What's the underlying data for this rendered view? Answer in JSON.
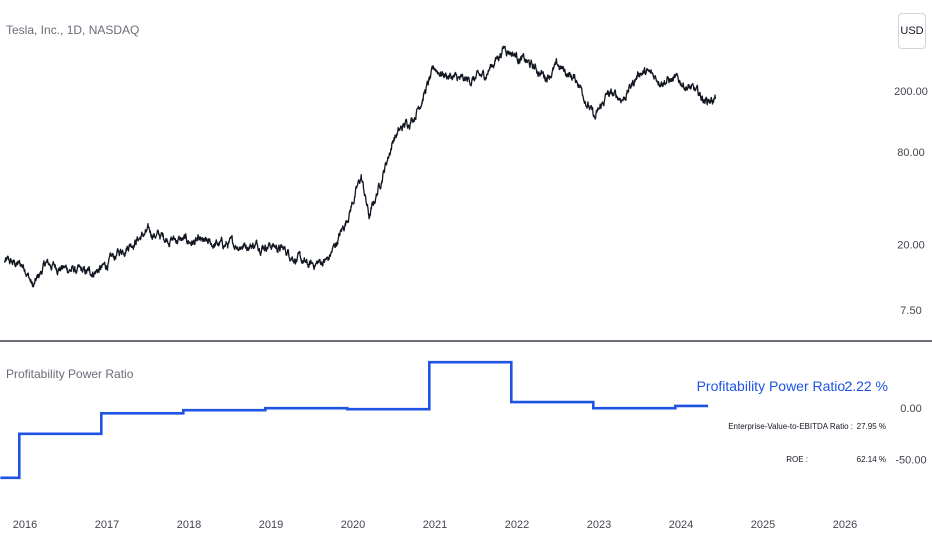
{
  "header": {
    "symbol_title": "Tesla, Inc., 1D, NASDAQ",
    "currency_button": "USD"
  },
  "indicator": {
    "title": "Profitability Power Ratio",
    "main_label": "Profitability Power Ratio :",
    "main_value": "2.22 %",
    "ev_label": "Enterprise-Value-to-EBITDA Ratio :",
    "ev_value": "27.95 %",
    "roe_label": "ROE :",
    "roe_value": "62.14 %"
  },
  "colors": {
    "price_line": "#131722",
    "indicator_line": "#1e53e5",
    "divider": "#131722",
    "axis_text": "#434651"
  },
  "chart_data": [
    {
      "type": "line",
      "series": [
        {
          "x": [
            2015.75,
            2016.0,
            2016.1,
            2016.25,
            2016.5,
            2016.75,
            2016.95,
            2017.25,
            2017.5,
            2017.75,
            2018.0,
            2018.25,
            2018.5,
            2018.75,
            2019.0,
            2019.2,
            2019.45,
            2019.7,
            2019.9,
            2020.1,
            2020.2,
            2020.5,
            2020.75,
            2021.0,
            2021.1,
            2021.35,
            2021.6,
            2021.85,
            2022.0,
            2022.35,
            2022.5,
            2022.75,
            2022.95,
            2023.1,
            2023.3,
            2023.5,
            2023.75,
            2024.0,
            2024.3,
            2024.42
          ],
          "y": [
            15.5,
            14.5,
            10.5,
            15.0,
            14.0,
            13.0,
            14.0,
            20.0,
            24.0,
            22.0,
            21.0,
            20.0,
            20.0,
            20.0,
            20.0,
            18.0,
            14.5,
            16.0,
            27.0,
            55.0,
            30.0,
            100.0,
            140.0,
            280.0,
            260.0,
            230.0,
            250.0,
            390.0,
            340.0,
            250.0,
            290.0,
            230.0,
            130.0,
            190.0,
            180.0,
            270.0,
            240.0,
            230.0,
            175.0,
            178.0
          ]
        }
      ],
      "y_scale": "log",
      "y_ticks": [
        "200.00",
        "80.00",
        "20.00",
        "7.50"
      ],
      "x_ticks": [
        "2016",
        "2017",
        "2018",
        "2019",
        "2020",
        "2021",
        "2022",
        "2023",
        "2024",
        "2025",
        "2026"
      ],
      "grid": false
    },
    {
      "type": "line",
      "step": true,
      "series": [
        {
          "name": "Profitability Power Ratio",
          "x": [
            2015.7,
            2015.93,
            2015.93,
            2016.93,
            2016.93,
            2017.93,
            2017.93,
            2018.93,
            2018.93,
            2019.93,
            2019.93,
            2020.93,
            2020.93,
            2021.93,
            2021.93,
            2022.93,
            2022.93,
            2023.93,
            2023.93,
            2024.33
          ],
          "y": [
            -68,
            -68,
            -25,
            -25,
            -5,
            -5,
            -2,
            -2,
            0,
            0,
            -1,
            -1,
            45,
            45,
            6,
            6,
            0,
            0,
            2.22,
            2.22
          ]
        }
      ],
      "y_ticks": [
        "0.00",
        "-50.00"
      ],
      "x_ticks": [
        "2016",
        "2017",
        "2018",
        "2019",
        "2020",
        "2021",
        "2022",
        "2023",
        "2024",
        "2025",
        "2026"
      ],
      "grid": false
    }
  ]
}
